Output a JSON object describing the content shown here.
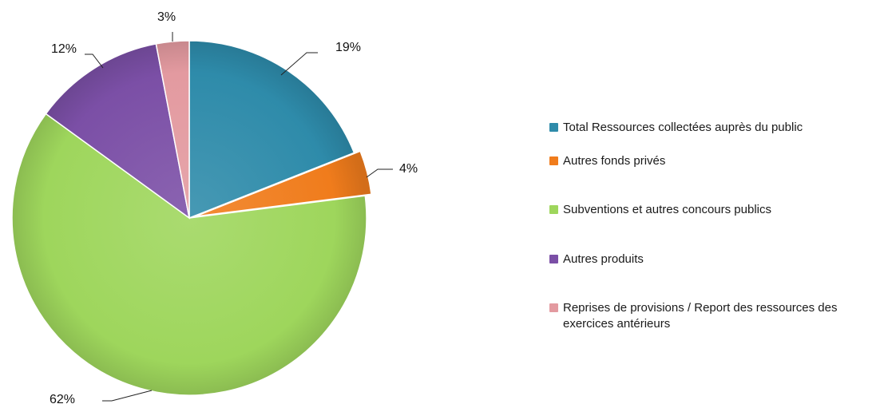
{
  "chart_data": {
    "type": "pie",
    "slices": [
      {
        "label": "Total Ressources  collectées  auprès du public",
        "value": 19,
        "value_label": "19%",
        "color": "#2E8BAA"
      },
      {
        "label": "Autres  fonds  privés",
        "value": 4,
        "value_label": "4%",
        "color": "#F07C1C"
      },
      {
        "label": "Subventions   et autres concours  publics",
        "value": 62,
        "value_label": "62%",
        "color": "#9ED65C"
      },
      {
        "label": "Autres  produits",
        "value": 12,
        "value_label": "12%",
        "color": "#7B4FA6"
      },
      {
        "label": "Reprises  de  provisions   /  Report  des  ressources  des exercices  antérieurs",
        "value": 3,
        "value_label": "3%",
        "color": "#E39AA0"
      }
    ],
    "legend_position": "right",
    "start": "12 o'clock, clockwise"
  }
}
